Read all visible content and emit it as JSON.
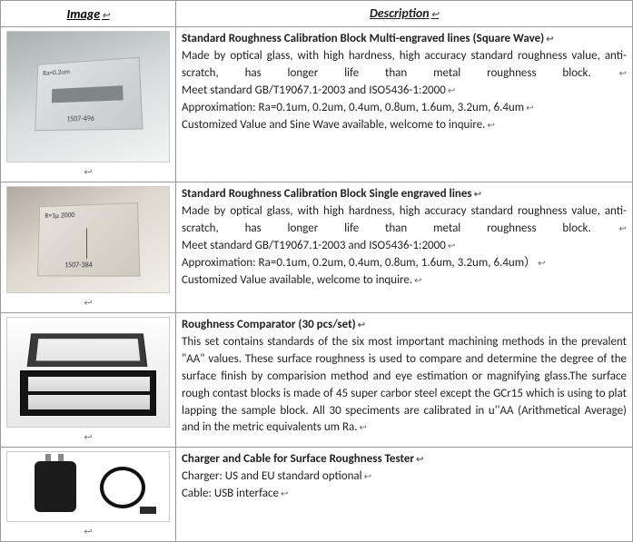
{
  "headers": {
    "image": "Image",
    "description": "Description"
  },
  "return_mark": "↩",
  "rows": [
    {
      "title": "Standard Roughness Calibration Block    Multi-engraved lines (Square Wave)",
      "lines": [
        "Made by optical glass, with high hardness, high accuracy standard roughness value, anti-scratch, has longer life than metal roughness block.  ",
        "Meet standard GB/T19067.1-2003 and ISO5436-1:2000",
        "Approximation: Ra=0.1um, 0.2um, 0.4um,    0.8um, 1.6um, 3.2um, 6.4um",
        "Customized Value and Sine Wave available, welcome to inquire."
      ],
      "justify_last_full": true
    },
    {
      "title": "Standard Roughness Calibration Block    Single engraved lines",
      "lines": [
        "Made by optical glass, with high hardness, high accuracy standard roughness value, anti-scratch, has longer life than metal roughness block.  ",
        "Meet standard GB/T19067.1-2003 and ISO5436-1:2000",
        "Approximation: Ra=0.1um, 0.2um, 0.4um,    0.8um, 1.6um, 3.2um, 6.4um）",
        "Customized Value available, welcome to inquire."
      ],
      "justify_last_full": true
    },
    {
      "title": "Roughness Comparator    (30 pcs/set)",
      "lines": [
        "This set contains standards of the six most important machining methods in the prevalent \"AA\" values. These surface roughness is used to compare and determine the degree of the surface finish by comparision method and eye estimation or magnifying glass.The surface rough contast blocks is made of 45 super carbor steel except the GCr15 which is using to plat lapping the sample block. All 30 speciments are calibrated in u''AA (Arithmetical Average) and in the metric equivalents um Ra."
      ],
      "justify_last_full": false
    },
    {
      "title": "Charger and Cable for Surface Roughness Tester",
      "lines": [
        "Charger: US and EU standard optional",
        "Cable: USB interface"
      ],
      "justify_last_full": false
    }
  ]
}
